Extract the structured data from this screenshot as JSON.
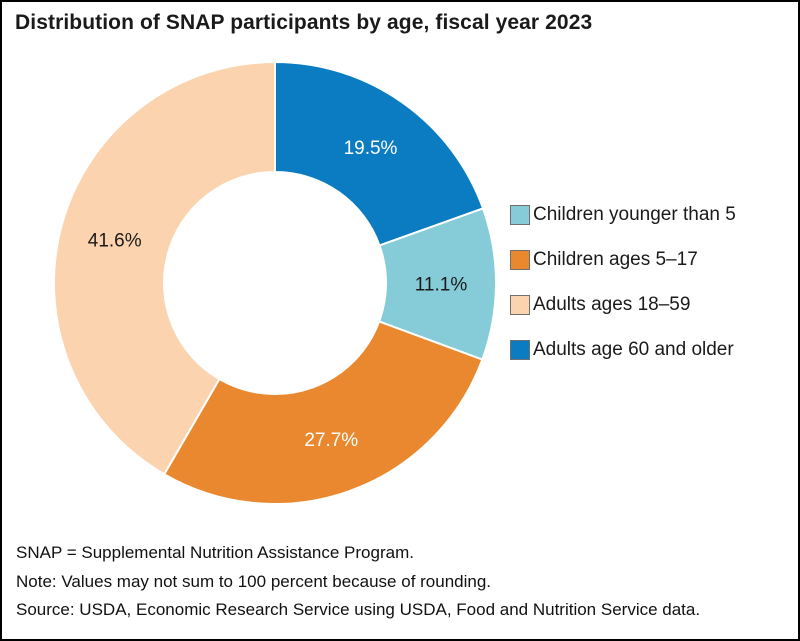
{
  "title": "Distribution of SNAP participants by age, fiscal year 2023",
  "chart_data": {
    "type": "pie",
    "subtype": "donut",
    "title": "Distribution of SNAP participants by age, fiscal year 2023",
    "units": "percent",
    "start_angle_deg": 0,
    "direction": "clockwise",
    "inner_radius_ratio": 0.5,
    "legend_position": "right",
    "slice_gap_color": "#ffffff",
    "series": [
      {
        "id": "adults-60-older",
        "label": "Adults age 60 and older",
        "value": 19.5,
        "color": "#0c7cc2",
        "label_color": "#ffffff"
      },
      {
        "id": "children-under-5",
        "label": "Children younger than 5",
        "value": 11.1,
        "color": "#86ccd8",
        "label_color": "#1a1a1a"
      },
      {
        "id": "children-5-17",
        "label": "Children ages 5–17",
        "value": 27.7,
        "color": "#e9882e",
        "label_color": "#ffffff"
      },
      {
        "id": "adults-18-59",
        "label": "Adults ages 18–59",
        "value": 41.6,
        "color": "#fbd3ae",
        "label_color": "#1a1a1a"
      }
    ]
  },
  "legend": {
    "items": [
      {
        "label": "Children younger than 5",
        "color": "#86ccd8"
      },
      {
        "label": "Children ages 5–17",
        "color": "#e9882e"
      },
      {
        "label": "Adults ages 18–59",
        "color": "#fbd3ae"
      },
      {
        "label": "Adults age 60 and older",
        "color": "#0c7cc2"
      }
    ]
  },
  "footnotes": [
    "SNAP = Supplemental Nutrition Assistance Program.",
    "Note: Values may not sum to 100 percent because of rounding.",
    "Source: USDA, Economic Research Service using USDA, Food and Nutrition Service data."
  ]
}
